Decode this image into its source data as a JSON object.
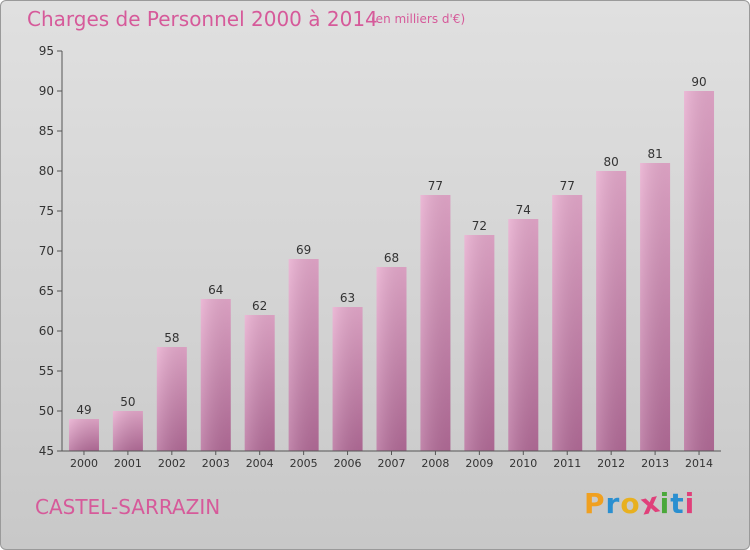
{
  "title": "Charges de Personnel 2000 à 2014",
  "unit_note": "(en milliers d'€)",
  "commune": "CASTEL-SARRAZIN",
  "logo": {
    "text": "Proxiti",
    "letters": [
      {
        "ch": "P",
        "color": "#f0a020"
      },
      {
        "ch": "r",
        "color": "#2a8fd0"
      },
      {
        "ch": "o",
        "color": "#e8b020"
      },
      {
        "ch": "x",
        "color": "#e0407a"
      },
      {
        "ch": "i",
        "color": "#4aa83a"
      },
      {
        "ch": "t",
        "color": "#2a8fd0"
      },
      {
        "ch": "i",
        "color": "#e0407a"
      }
    ]
  },
  "colors": {
    "accent": "#d65a9a",
    "bar_top": "#e7aacd",
    "bar_bottom": "#b46c99",
    "axis": "#555555",
    "text": "#333333"
  },
  "chart_data": {
    "type": "bar",
    "title": "Charges de Personnel 2000 à 2014",
    "subtitle": "(en milliers d'€)",
    "categories": [
      "2000",
      "2001",
      "2002",
      "2003",
      "2004",
      "2005",
      "2006",
      "2007",
      "2008",
      "2009",
      "2010",
      "2011",
      "2012",
      "2013",
      "2014"
    ],
    "values": [
      49,
      50,
      58,
      64,
      62,
      69,
      63,
      68,
      77,
      72,
      74,
      77,
      80,
      81,
      90
    ],
    "ylim": [
      45,
      95
    ],
    "yticks": [
      45,
      50,
      55,
      60,
      65,
      70,
      75,
      80,
      85,
      90,
      95
    ],
    "xlabel": "",
    "ylabel": "",
    "grid": false,
    "legend": "none",
    "data_labels": true
  }
}
